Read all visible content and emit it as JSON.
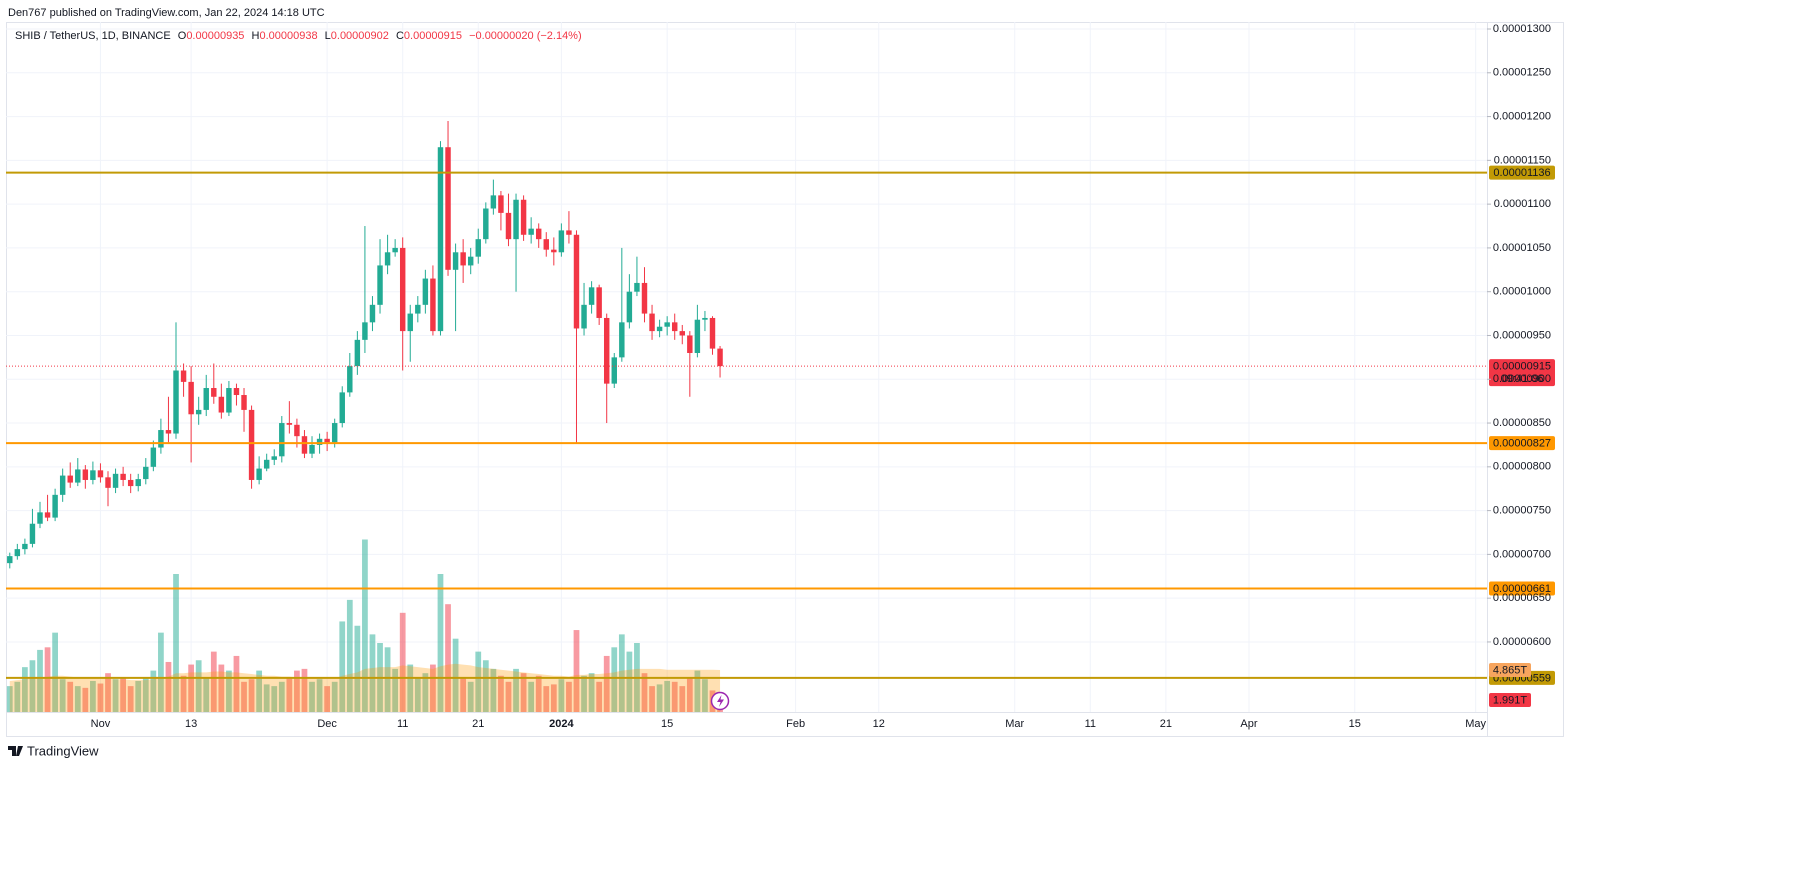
{
  "header": {
    "published": "Den767 published on TradingView.com, Jan 22, 2024 14:18 UTC"
  },
  "footer": {
    "brand": "TradingView"
  },
  "chart_data": {
    "type": "candlestick",
    "legend": {
      "symbol": "SHIB / TetherUS, 1D, BINANCE",
      "items": [
        {
          "key": "O",
          "value": "0.00000935"
        },
        {
          "key": "H",
          "value": "0.00000938"
        },
        {
          "key": "L",
          "value": "0.00000902"
        },
        {
          "key": "C",
          "value": "0.00000915"
        }
      ],
      "change": "−0.00000020 (−2.14%)"
    },
    "categories": [
      null,
      null,
      null,
      null,
      null,
      null,
      null,
      null,
      null,
      null,
      null,
      null,
      "Nov",
      null,
      null,
      null,
      null,
      null,
      null,
      null,
      null,
      null,
      null,
      null,
      "13",
      null,
      null,
      null,
      null,
      null,
      null,
      null,
      null,
      null,
      null,
      null,
      null,
      null,
      null,
      null,
      null,
      null,
      "Dec",
      null,
      null,
      null,
      null,
      null,
      null,
      null,
      null,
      null,
      "11",
      null,
      null,
      null,
      null,
      null,
      null,
      null,
      null,
      null,
      "21",
      null,
      null,
      null,
      null,
      null,
      null,
      null,
      null,
      null,
      null,
      "2024",
      null,
      null,
      null,
      null,
      null,
      null,
      null,
      null,
      null,
      null,
      null,
      null,
      null,
      "15",
      null,
      null,
      null,
      null,
      null,
      null,
      null,
      null,
      null,
      null,
      null,
      null,
      null,
      null,
      null,
      null,
      "Feb",
      null,
      null,
      null,
      null,
      null,
      null,
      null,
      null,
      null,
      null,
      "12",
      null,
      null,
      null,
      null,
      null,
      null,
      null,
      null,
      null,
      null,
      null,
      null,
      null,
      null,
      null,
      null,
      null,
      "Mar",
      null,
      null,
      null,
      null,
      null,
      null,
      null,
      null,
      null,
      "11",
      null,
      null,
      null,
      null,
      null,
      null,
      null,
      null,
      null,
      "21",
      null,
      null,
      null,
      null,
      null,
      null,
      null,
      null,
      null,
      null,
      "Apr",
      null,
      null,
      null,
      null,
      null,
      null,
      null,
      null,
      null,
      null,
      null,
      null,
      null,
      "15",
      null,
      null,
      null,
      null,
      null,
      null,
      null,
      null,
      null,
      null,
      null,
      null,
      null,
      null,
      null,
      "May",
      null
    ],
    "series": [
      {
        "name": "SHIB / TetherUS, 1D, BINANCE",
        "up_color": "#22ab94",
        "down_color": "#f23645",
        "open": [
          6.9e-06,
          6.98e-06,
          7.06e-06,
          7.12e-06,
          7.35e-06,
          7.48e-06,
          7.42e-06,
          7.68e-06,
          7.9e-06,
          7.82e-06,
          7.97e-06,
          7.85e-06,
          7.96e-06,
          7.88e-06,
          7.76e-06,
          7.92e-06,
          7.85e-06,
          7.78e-06,
          7.86e-06,
          8e-06,
          8.22e-06,
          8.42e-06,
          8.38e-06,
          9.1e-06,
          8.97e-06,
          8.6e-06,
          8.65e-06,
          8.9e-06,
          8.8e-06,
          8.62e-06,
          8.9e-06,
          8.82e-06,
          8.65e-06,
          7.85e-06,
          7.98e-06,
          8.08e-06,
          8.12e-06,
          8.5e-06,
          8.48e-06,
          8.35e-06,
          8.15e-06,
          8.25e-06,
          8.32e-06,
          8.28e-06,
          8.5e-06,
          8.85e-06,
          9.15e-06,
          9.45e-06,
          9.65e-06,
          9.85e-06,
          1.03e-05,
          1.045e-05,
          1.05e-05,
          9.55e-06,
          9.75e-06,
          9.85e-06,
          1.015e-05,
          9.55e-06,
          1.165e-05,
          1.025e-05,
          1.045e-05,
          1.03e-05,
          1.04e-05,
          1.06e-05,
          1.095e-05,
          1.11e-05,
          1.09e-05,
          1.06e-05,
          1.105e-05,
          1.065e-05,
          1.072e-05,
          1.06e-05,
          1.048e-05,
          1.045e-05,
          1.07e-05,
          1.065e-05,
          9.58e-06,
          9.85e-06,
          1.005e-05,
          9.7e-06,
          8.95e-06,
          9.25e-06,
          9.65e-06,
          1e-05,
          1.01e-05,
          9.75e-06,
          9.55e-06,
          9.6e-06,
          9.65e-06,
          9.55e-06,
          9.5e-06,
          9.3e-06,
          9.68e-06,
          9.7e-06,
          9.35e-06
        ],
        "high": [
          7.02e-06,
          7.12e-06,
          7.18e-06,
          7.52e-06,
          7.6e-06,
          7.68e-06,
          7.75e-06,
          7.98e-06,
          8.05e-06,
          8.1e-06,
          8.02e-06,
          8.06e-06,
          8.04e-06,
          7.95e-06,
          7.98e-06,
          8e-06,
          7.92e-06,
          7.92e-06,
          8.1e-06,
          8.3e-06,
          8.55e-06,
          8.8e-06,
          9.65e-06,
          9.18e-06,
          9.15e-06,
          8.8e-06,
          9.05e-06,
          9.18e-06,
          8.95e-06,
          8.98e-06,
          8.95e-06,
          8.9e-06,
          8.7e-06,
          8.12e-06,
          8.15e-06,
          8.2e-06,
          8.58e-06,
          8.75e-06,
          8.55e-06,
          8.42e-06,
          8.35e-06,
          8.38e-06,
          8.4e-06,
          8.55e-06,
          8.92e-06,
          9.3e-06,
          9.55e-06,
          1.075e-05,
          9.95e-06,
          1.06e-05,
          1.065e-05,
          1.06e-05,
          1.062e-05,
          9.85e-06,
          9.95e-06,
          1.025e-05,
          1.03e-05,
          1.172e-05,
          1.195e-05,
          1.055e-05,
          1.06e-05,
          1.05e-05,
          1.072e-05,
          1.102e-05,
          1.128e-05,
          1.115e-05,
          1.112e-05,
          1.112e-05,
          1.11e-05,
          1.085e-05,
          1.078e-05,
          1.068e-05,
          1.062e-05,
          1.078e-05,
          1.092e-05,
          1.07e-05,
          1.01e-05,
          1.012e-05,
          1.008e-05,
          9.75e-06,
          9.3e-06,
          1.05e-05,
          1.02e-05,
          1.04e-05,
          1.028e-05,
          9.85e-06,
          9.68e-06,
          9.72e-06,
          9.75e-06,
          9.62e-06,
          9.55e-06,
          9.85e-06,
          9.78e-06,
          9.72e-06,
          9.38e-06
        ],
        "low": [
          6.84e-06,
          6.94e-06,
          7e-06,
          7.08e-06,
          7.3e-06,
          7.38e-06,
          7.38e-06,
          7.6e-06,
          7.76e-06,
          7.78e-06,
          7.75e-06,
          7.8e-06,
          7.82e-06,
          7.55e-06,
          7.7e-06,
          7.78e-06,
          7.7e-06,
          7.72e-06,
          7.8e-06,
          7.95e-06,
          8.15e-06,
          8.28e-06,
          8.32e-06,
          8.8e-06,
          8.05e-06,
          8.48e-06,
          8.58e-06,
          8.72e-06,
          8.55e-06,
          8.58e-06,
          8.7e-06,
          8.4e-06,
          7.75e-06,
          7.8e-06,
          7.95e-06,
          8.02e-06,
          8.05e-06,
          8.38e-06,
          8.22e-06,
          8.1e-06,
          8.1e-06,
          8.15e-06,
          8.18e-06,
          8.22e-06,
          8.45e-06,
          8.8e-06,
          9.05e-06,
          9.3e-06,
          9.55e-06,
          9.75e-06,
          1.02e-05,
          1.04e-05,
          9.1e-06,
          9.2e-06,
          9.65e-06,
          9.75e-06,
          9.5e-06,
          9.5e-06,
          1.018e-05,
          9.55e-06,
          1.01e-05,
          1.02e-05,
          1.032e-05,
          1.055e-05,
          1.088e-05,
          1.07e-05,
          1.052e-05,
          1e-05,
          1.058e-05,
          1.055e-05,
          1.05e-05,
          1.04e-05,
          1.03e-05,
          1.04e-05,
          1.055e-05,
          8.27e-06,
          9.5e-06,
          9.75e-06,
          9.62e-06,
          8.5e-06,
          8.9e-06,
          9.2e-06,
          9.58e-06,
          9.95e-06,
          9.65e-06,
          9.45e-06,
          9.48e-06,
          9.5e-06,
          9.45e-06,
          9.4e-06,
          8.8e-06,
          9.25e-06,
          9.55e-06,
          9.28e-06,
          9.02e-06
        ],
        "close": [
          6.98e-06,
          7.06e-06,
          7.12e-06,
          7.35e-06,
          7.48e-06,
          7.42e-06,
          7.68e-06,
          7.9e-06,
          7.82e-06,
          7.97e-06,
          7.85e-06,
          7.96e-06,
          7.88e-06,
          7.76e-06,
          7.92e-06,
          7.85e-06,
          7.78e-06,
          7.86e-06,
          8e-06,
          8.22e-06,
          8.42e-06,
          8.38e-06,
          9.1e-06,
          8.97e-06,
          8.6e-06,
          8.65e-06,
          8.9e-06,
          8.8e-06,
          8.62e-06,
          8.9e-06,
          8.82e-06,
          8.65e-06,
          7.85e-06,
          7.98e-06,
          8.08e-06,
          8.12e-06,
          8.5e-06,
          8.48e-06,
          8.35e-06,
          8.15e-06,
          8.25e-06,
          8.32e-06,
          8.28e-06,
          8.5e-06,
          8.85e-06,
          9.15e-06,
          9.45e-06,
          9.65e-06,
          9.85e-06,
          1.03e-05,
          1.045e-05,
          1.05e-05,
          9.55e-06,
          9.75e-06,
          9.85e-06,
          1.015e-05,
          9.55e-06,
          1.165e-05,
          1.025e-05,
          1.045e-05,
          1.03e-05,
          1.04e-05,
          1.06e-05,
          1.095e-05,
          1.11e-05,
          1.09e-05,
          1.06e-05,
          1.105e-05,
          1.065e-05,
          1.072e-05,
          1.06e-05,
          1.048e-05,
          1.045e-05,
          1.07e-05,
          1.065e-05,
          9.58e-06,
          9.85e-06,
          1.005e-05,
          9.7e-06,
          8.95e-06,
          9.25e-06,
          9.65e-06,
          1e-05,
          1.01e-05,
          9.75e-06,
          9.55e-06,
          9.6e-06,
          9.65e-06,
          9.55e-06,
          9.5e-06,
          9.3e-06,
          9.68e-06,
          9.7e-06,
          9.35e-06,
          9.15e-06
        ]
      }
    ],
    "volume": {
      "up_color": "rgba(34,171,148,0.5)",
      "down_color": "rgba(242,54,69,0.5)",
      "ma_color": "rgba(255,152,0,0.3)",
      "vlim": [
        0,
        80
      ],
      "values": [
        3.0,
        3.5,
        5.2,
        6.0,
        7.2,
        7.5,
        9.2,
        3.8,
        3.5,
        3.0,
        2.8,
        3.6,
        3.3,
        4.5,
        3.8,
        4.0,
        3.0,
        3.6,
        4.0,
        4.8,
        9.2,
        5.8,
        16.0,
        4.2,
        5.5,
        6.0,
        4.0,
        7.0,
        5.5,
        4.8,
        6.5,
        3.5,
        3.8,
        4.8,
        3.2,
        3.0,
        3.5,
        4.0,
        4.8,
        5.0,
        3.5,
        3.8,
        3.0,
        3.5,
        10.5,
        13.0,
        10.0,
        20.0,
        9.0,
        8.0,
        7.5,
        5.0,
        11.5,
        5.5,
        4.0,
        4.5,
        5.5,
        16.0,
        12.5,
        8.5,
        4.0,
        3.5,
        7.0,
        6.0,
        5.0,
        4.2,
        3.5,
        5.0,
        4.5,
        3.5,
        4.2,
        3.0,
        3.2,
        3.8,
        3.5,
        9.5,
        4.2,
        4.5,
        3.5,
        6.5,
        7.5,
        9.0,
        7.0,
        8.0,
        4.5,
        3.0,
        3.2,
        3.6,
        3.5,
        3.0,
        4.0,
        4.8,
        3.8,
        2.5,
        1.991
      ],
      "ma": [
        3.6,
        3.7,
        3.8,
        3.9,
        4.0,
        4.1,
        4.2,
        4.2,
        4.1,
        4.0,
        4.0,
        3.9,
        3.9,
        3.9,
        3.8,
        3.8,
        3.7,
        3.7,
        3.7,
        3.8,
        4.0,
        4.1,
        4.5,
        4.5,
        4.6,
        4.6,
        4.6,
        4.7,
        4.7,
        4.6,
        4.6,
        4.5,
        4.4,
        4.3,
        4.2,
        4.2,
        4.1,
        4.1,
        4.0,
        4.0,
        3.9,
        3.9,
        3.9,
        3.9,
        4.2,
        4.4,
        4.6,
        5.0,
        5.1,
        5.2,
        5.2,
        5.2,
        5.4,
        5.3,
        5.2,
        5.1,
        5.0,
        5.3,
        5.5,
        5.6,
        5.5,
        5.4,
        5.2,
        5.1,
        5.0,
        4.9,
        4.8,
        4.7,
        4.6,
        4.5,
        4.4,
        4.3,
        4.2,
        4.2,
        4.1,
        4.3,
        4.3,
        4.4,
        4.4,
        4.5,
        4.6,
        4.8,
        4.9,
        5.0,
        5.0,
        5.0,
        5.0,
        4.9,
        4.9,
        4.9,
        4.9,
        4.9,
        4.9,
        4.9,
        4.865
      ],
      "ma_label": "4.865T",
      "last_label": "1.991T"
    },
    "ylim": [
      5.2e-06,
      1.308e-05
    ],
    "yticks": [
      {
        "value": 6e-06,
        "label": "0.00000600"
      },
      {
        "value": 6.5e-06,
        "label": "0.00000650"
      },
      {
        "value": 7e-06,
        "label": "0.00000700"
      },
      {
        "value": 7.5e-06,
        "label": "0.00000750"
      },
      {
        "value": 8e-06,
        "label": "0.00000800"
      },
      {
        "value": 8.5e-06,
        "label": "0.00000850"
      },
      {
        "value": 9e-06,
        "label": "0.00000900"
      },
      {
        "value": 9.5e-06,
        "label": "0.00000950"
      },
      {
        "value": 1e-05,
        "label": "0.00001000"
      },
      {
        "value": 1.05e-05,
        "label": "0.00001050"
      },
      {
        "value": 1.1e-05,
        "label": "0.00001100"
      },
      {
        "value": 1.15e-05,
        "label": "0.00001150"
      },
      {
        "value": 1.2e-05,
        "label": "0.00001200"
      },
      {
        "value": 1.25e-05,
        "label": "0.00001250"
      },
      {
        "value": 1.3e-05,
        "label": "0.00001300"
      }
    ],
    "grid": true,
    "hlines": [
      {
        "value": 1.136e-05,
        "label": "0.00001136",
        "color": "#c29a05"
      },
      {
        "value": 8.27e-06,
        "label": "0.00000827",
        "color": "#ff9800"
      },
      {
        "value": 6.61e-06,
        "label": "0.00000661",
        "color": "#ff9800"
      },
      {
        "value": 5.59e-06,
        "label": "0.00000559",
        "color": "#c29a05"
      }
    ],
    "last_price": {
      "value": 9.15e-06,
      "label": "0.00000915",
      "countdown": "09:41:06",
      "color": "#f23645"
    }
  }
}
